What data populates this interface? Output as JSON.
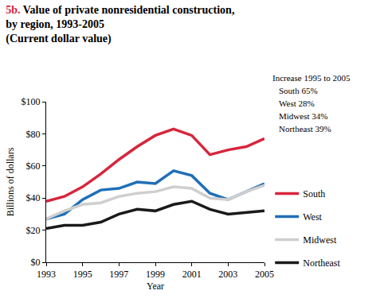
{
  "chart_data": {
    "type": "line",
    "title": [
      "5b. Value of private nonresidential construction,",
      "by region, 1993-2005"
    ],
    "subtitle": "(Current dollar value)",
    "x_label": "Year",
    "y_label": "Billions of dollars",
    "x": [
      1993,
      1994,
      1995,
      1996,
      1997,
      1998,
      1999,
      2000,
      2001,
      2002,
      2003,
      2004,
      2005
    ],
    "series": [
      {
        "name": "South",
        "color": "#d7263d",
        "values": [
          38,
          41,
          47,
          55,
          64,
          72,
          79,
          83,
          79,
          67,
          70,
          72,
          77
        ]
      },
      {
        "name": "West",
        "color": "#1f6fb8",
        "values": [
          27,
          30,
          39,
          45,
          46,
          50,
          49,
          57,
          54,
          43,
          39,
          44,
          49
        ]
      },
      {
        "name": "Midwest",
        "color": "#cfcfcf",
        "values": [
          27,
          32,
          36,
          37,
          41,
          43,
          44,
          47,
          46,
          40,
          39,
          44,
          48
        ]
      },
      {
        "name": "Northeast",
        "color": "#1a1a1a",
        "values": [
          21,
          23,
          23,
          25,
          30,
          33,
          32,
          36,
          38,
          33,
          30,
          31,
          32
        ]
      }
    ],
    "annotations": [
      "Increase 1995 to 2005",
      "South 65%",
      "West 28%",
      "Midwest 34%",
      "Northeast 39%"
    ],
    "xlim": [
      1993,
      2005
    ],
    "xticks": [
      1993,
      1995,
      1997,
      1999,
      2001,
      2003,
      2005
    ],
    "ylim": [
      0,
      100
    ],
    "yticks": [
      {
        "value": 0,
        "label": "$0"
      },
      {
        "value": 20,
        "label": "$20"
      },
      {
        "value": 40,
        "label": "$40"
      },
      {
        "value": 60,
        "label": "$60"
      },
      {
        "value": 80,
        "label": "$80"
      },
      {
        "value": 100,
        "label": "$100"
      }
    ],
    "grid": false,
    "legend": "right"
  }
}
